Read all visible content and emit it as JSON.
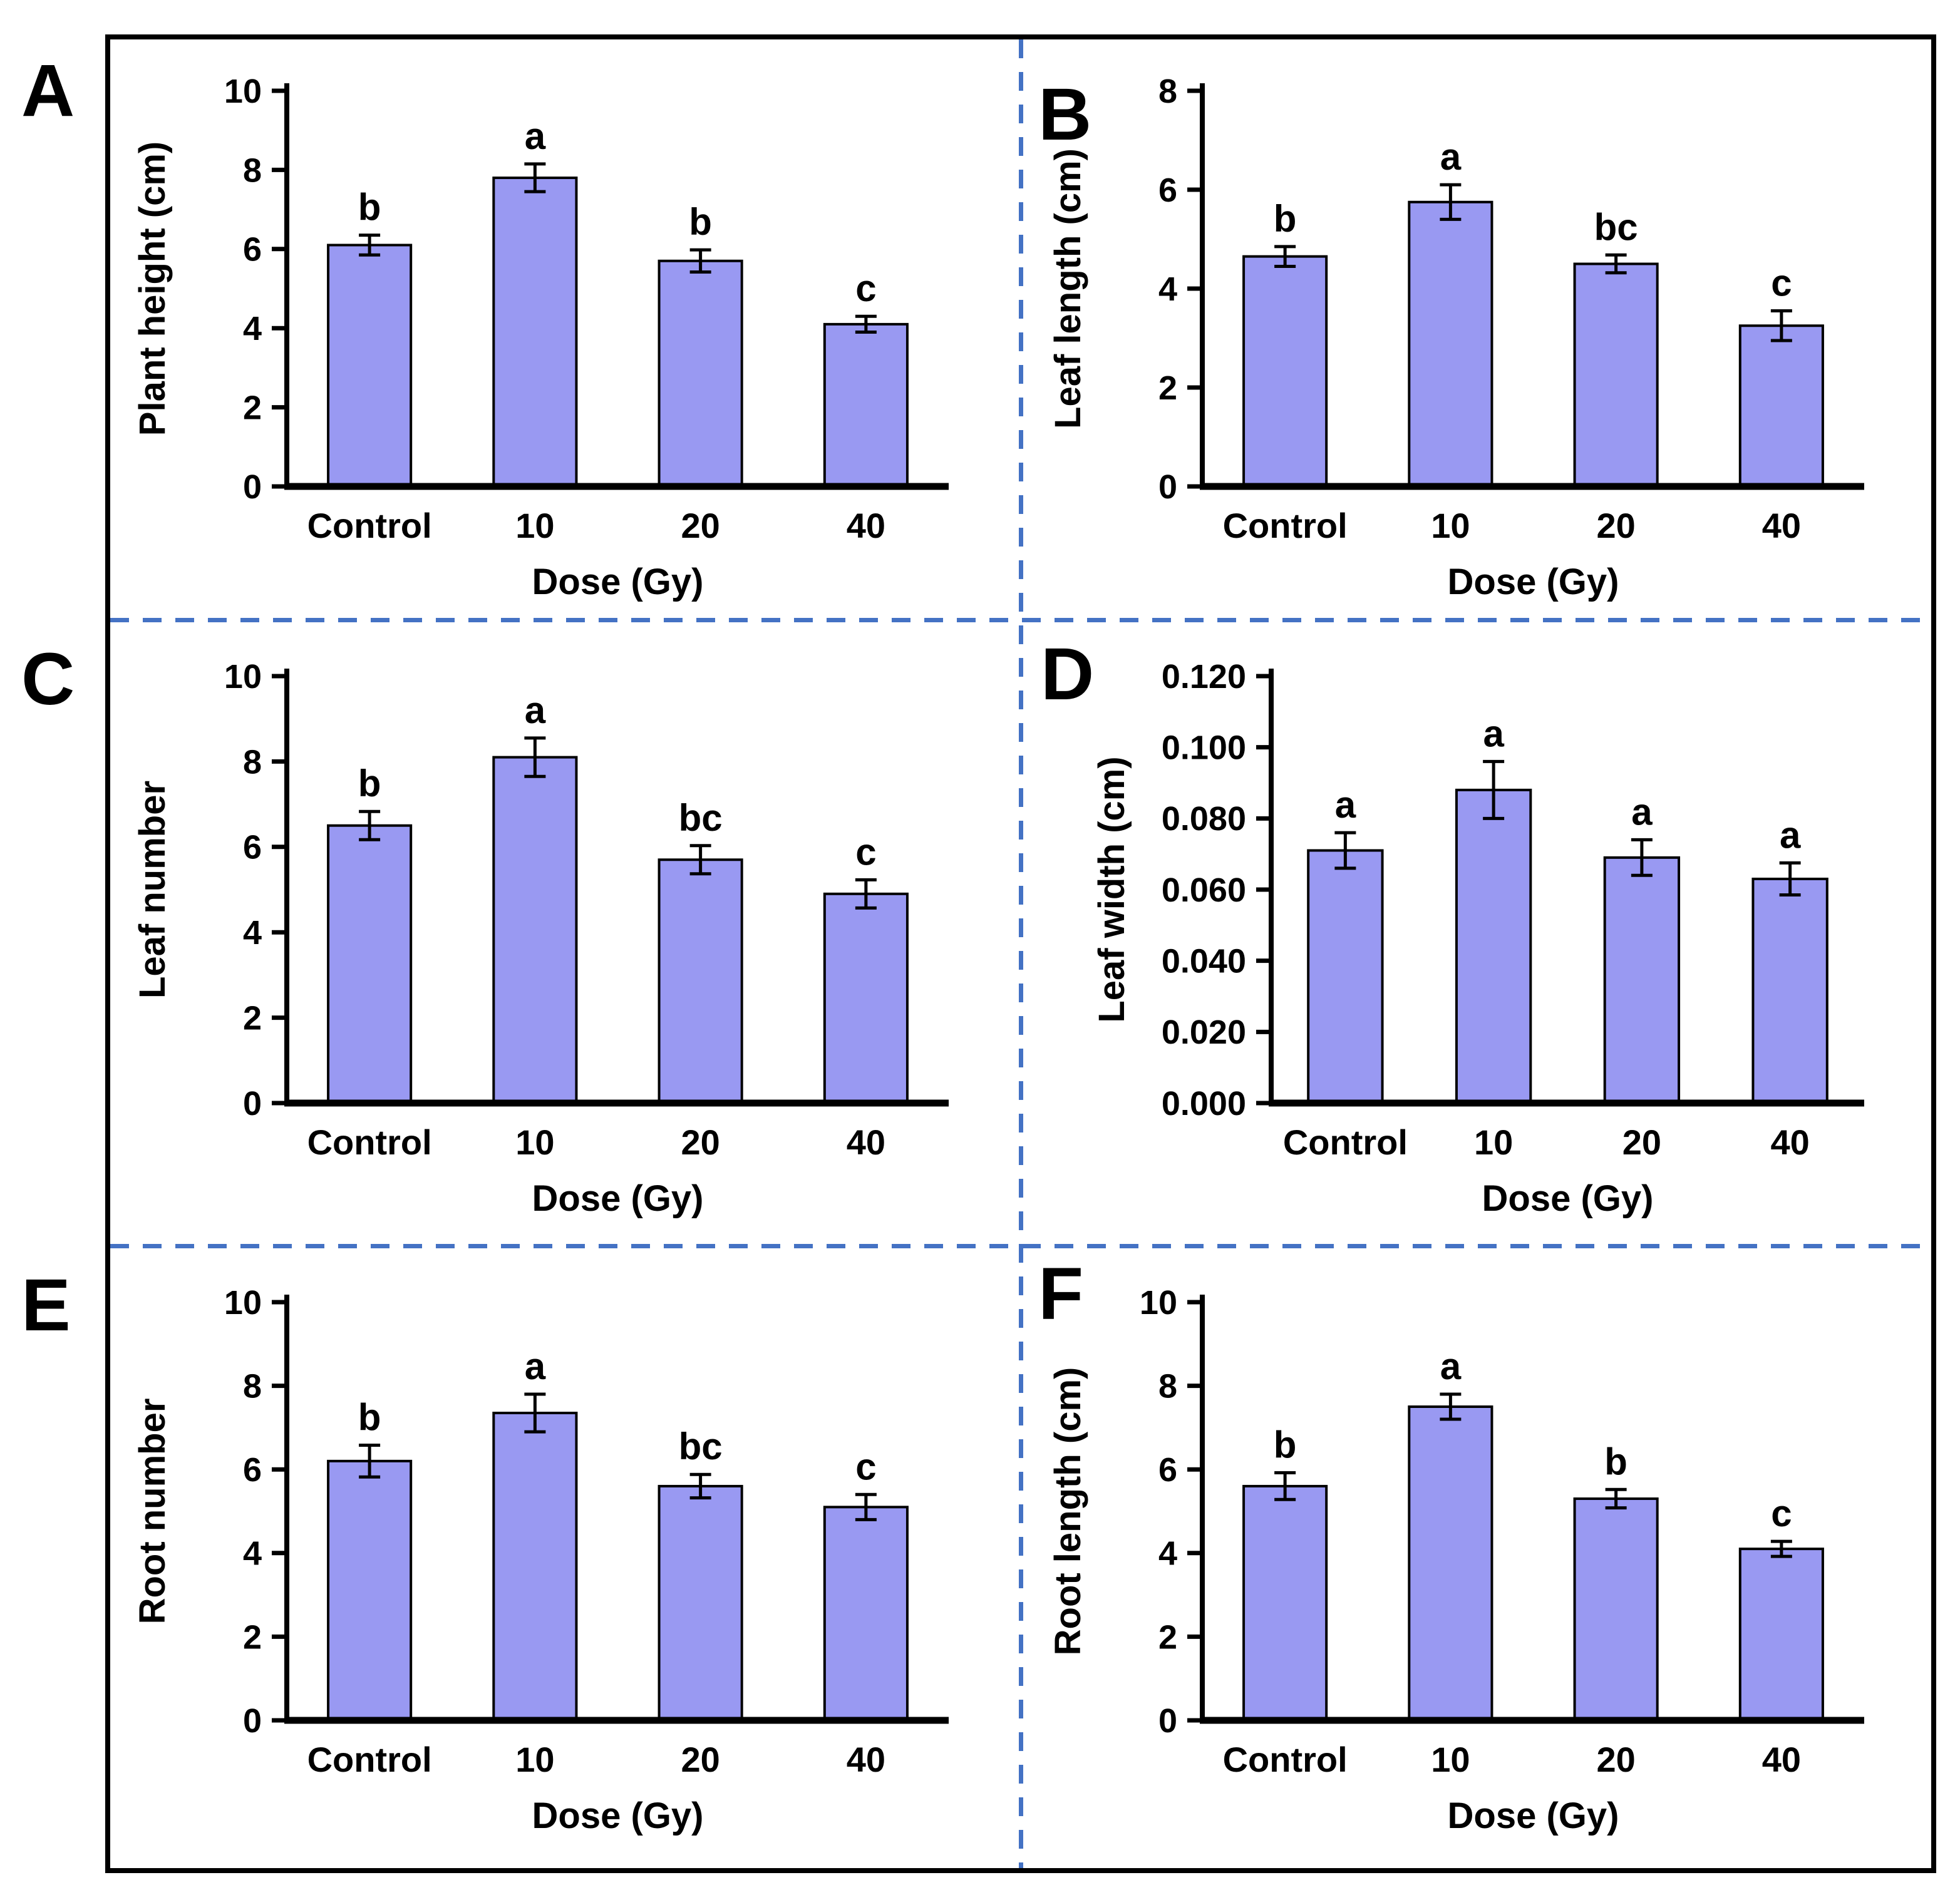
{
  "figure": {
    "bar_fill_color": "#9999F2",
    "bar_border_color": "#000000",
    "divider_color": "#4472C4",
    "frame_color": "#000000",
    "xlabel": "Dose (Gy)",
    "categories": [
      "Control",
      "10",
      "20",
      "40"
    ]
  },
  "chart_data": [
    {
      "type": "bar",
      "panel_label": "A",
      "title": "",
      "ylabel": "Plant height (cm)",
      "xlabel": "Dose (Gy)",
      "categories": [
        "Control",
        "10",
        "20",
        "40"
      ],
      "values": [
        6.1,
        7.8,
        5.7,
        4.1
      ],
      "errors": [
        0.25,
        0.35,
        0.28,
        0.2
      ],
      "sig_letters": [
        "b",
        "a",
        "b",
        "c"
      ],
      "ylim": [
        0,
        10
      ],
      "ytick_step": 2,
      "tick_decimals": 0,
      "grid": false,
      "legend": "none"
    },
    {
      "type": "bar",
      "panel_label": "B",
      "title": "",
      "ylabel": "Leaf length (cm)",
      "xlabel": "Dose (Gy)",
      "categories": [
        "Control",
        "10",
        "20",
        "40"
      ],
      "values": [
        4.65,
        5.75,
        4.5,
        3.25
      ],
      "errors": [
        0.2,
        0.35,
        0.18,
        0.3
      ],
      "sig_letters": [
        "b",
        "a",
        "bc",
        "c"
      ],
      "ylim": [
        0,
        8
      ],
      "ytick_step": 2,
      "tick_decimals": 0,
      "grid": false,
      "legend": "none"
    },
    {
      "type": "bar",
      "panel_label": "C",
      "title": "",
      "ylabel": "Leaf number",
      "xlabel": "Dose (Gy)",
      "categories": [
        "Control",
        "10",
        "20",
        "40"
      ],
      "values": [
        6.5,
        8.1,
        5.7,
        4.9
      ],
      "errors": [
        0.33,
        0.45,
        0.33,
        0.33
      ],
      "sig_letters": [
        "b",
        "a",
        "bc",
        "c"
      ],
      "ylim": [
        0,
        10
      ],
      "ytick_step": 2,
      "tick_decimals": 0,
      "grid": false,
      "legend": "none"
    },
    {
      "type": "bar",
      "panel_label": "D",
      "title": "",
      "ylabel": "Leaf width (cm)",
      "xlabel": "Dose (Gy)",
      "categories": [
        "Control",
        "10",
        "20",
        "40"
      ],
      "values": [
        0.071,
        0.088,
        0.069,
        0.063
      ],
      "errors": [
        0.005,
        0.008,
        0.005,
        0.0045
      ],
      "sig_letters": [
        "a",
        "a",
        "a",
        "a"
      ],
      "ylim": [
        0,
        0.12
      ],
      "ytick_step": 0.02,
      "tick_decimals": 3,
      "grid": false,
      "legend": "none"
    },
    {
      "type": "bar",
      "panel_label": "E",
      "title": "",
      "ylabel": "Root number",
      "xlabel": "Dose (Gy)",
      "categories": [
        "Control",
        "10",
        "20",
        "40"
      ],
      "values": [
        6.2,
        7.35,
        5.6,
        5.1
      ],
      "errors": [
        0.38,
        0.45,
        0.28,
        0.3
      ],
      "sig_letters": [
        "b",
        "a",
        "bc",
        "c"
      ],
      "ylim": [
        0,
        10
      ],
      "ytick_step": 2,
      "tick_decimals": 0,
      "grid": false,
      "legend": "none"
    },
    {
      "type": "bar",
      "panel_label": "F",
      "title": "",
      "ylabel": "Root length (cm)",
      "xlabel": "Dose (Gy)",
      "categories": [
        "Control",
        "10",
        "20",
        "40"
      ],
      "values": [
        5.6,
        7.5,
        5.3,
        4.1
      ],
      "errors": [
        0.32,
        0.3,
        0.22,
        0.18
      ],
      "sig_letters": [
        "b",
        "a",
        "b",
        "c"
      ],
      "ylim": [
        0,
        10
      ],
      "ytick_step": 2,
      "tick_decimals": 0,
      "grid": false,
      "legend": "none"
    }
  ]
}
